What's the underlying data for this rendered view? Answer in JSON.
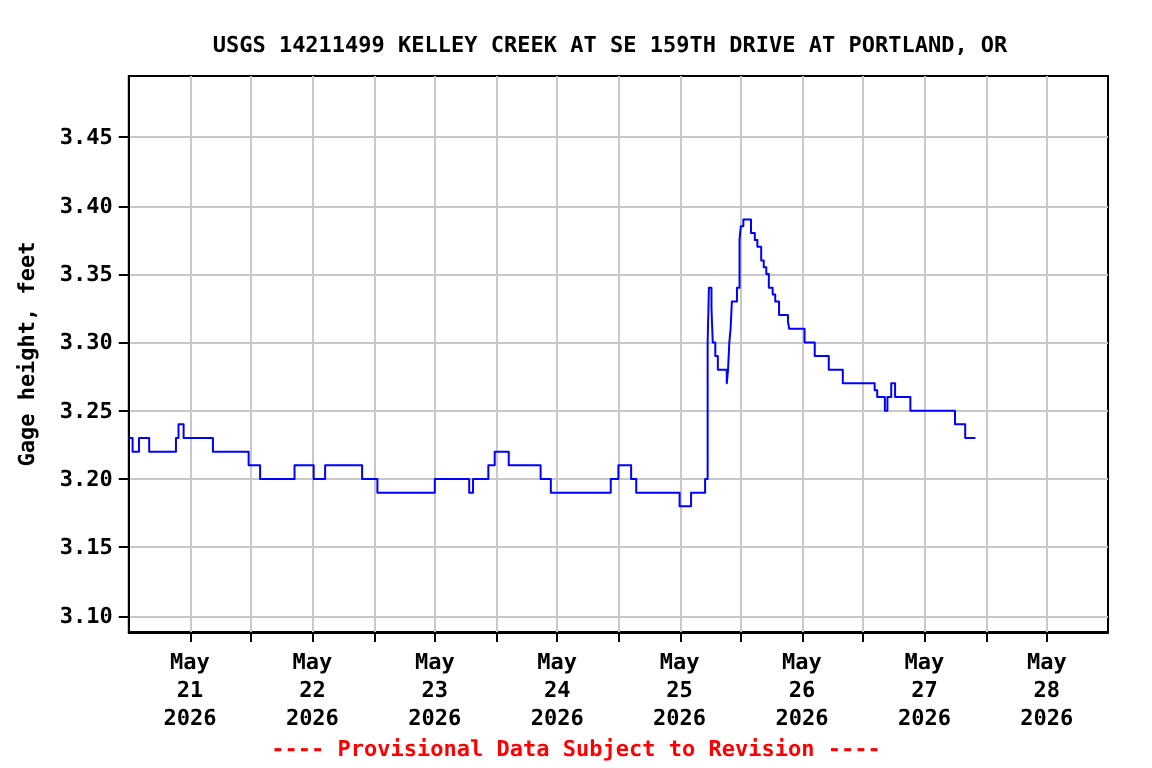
{
  "chart_data": {
    "type": "step",
    "title": "USGS 14211499 KELLEY CREEK AT SE 159TH DRIVE AT PORTLAND, OR",
    "ylabel": "Gage height, feet",
    "annotations": [
      "---- Provisional Data Subject to Revision ----"
    ],
    "x": [
      "2026-05-21T00:00",
      "2026-05-21T00:45",
      "2026-05-21T02:00",
      "2026-05-21T04:00",
      "2026-05-21T09:15",
      "2026-05-21T09:45",
      "2026-05-21T10:45",
      "2026-05-21T16:30",
      "2026-05-21T23:30",
      "2026-05-22T01:45",
      "2026-05-22T08:30",
      "2026-05-22T12:15",
      "2026-05-22T14:30",
      "2026-05-22T21:45",
      "2026-05-23T00:45",
      "2026-05-23T12:00",
      "2026-05-23T18:45",
      "2026-05-23T19:30",
      "2026-05-23T22:30",
      "2026-05-23T23:45",
      "2026-05-24T02:30",
      "2026-05-24T08:45",
      "2026-05-24T10:45",
      "2026-05-24T22:30",
      "2026-05-25T00:00",
      "2026-05-25T02:30",
      "2026-05-25T03:30",
      "2026-05-25T12:00",
      "2026-05-25T14:15",
      "2026-05-25T17:00",
      "2026-05-25T17:30",
      "2026-05-25T17:45",
      "2026-05-25T18:15",
      "2026-05-25T18:30",
      "2026-05-25T19:00",
      "2026-05-25T19:30",
      "2026-05-25T21:15",
      "2026-05-25T21:30",
      "2026-05-25T21:45",
      "2026-05-25T22:00",
      "2026-05-25T22:15",
      "2026-05-25T23:15",
      "2026-05-25T23:45",
      "2026-05-26T00:00",
      "2026-05-26T00:30",
      "2026-05-26T02:00",
      "2026-05-26T02:45",
      "2026-05-26T03:15",
      "2026-05-26T04:00",
      "2026-05-26T04:30",
      "2026-05-26T05:00",
      "2026-05-26T05:30",
      "2026-05-26T06:15",
      "2026-05-26T06:45",
      "2026-05-26T07:30",
      "2026-05-26T09:15",
      "2026-05-26T09:30",
      "2026-05-26T12:30",
      "2026-05-26T14:30",
      "2026-05-26T17:15",
      "2026-05-26T20:00",
      "2026-05-27T02:15",
      "2026-05-27T02:45",
      "2026-05-27T04:15",
      "2026-05-27T04:45",
      "2026-05-27T05:30",
      "2026-05-27T06:15",
      "2026-05-27T09:15",
      "2026-05-27T18:00",
      "2026-05-27T20:00",
      "2026-05-27T22:00"
    ],
    "series": [
      {
        "color": "#0000ff",
        "values": [
          3.23,
          3.22,
          3.23,
          3.22,
          3.23,
          3.24,
          3.23,
          3.22,
          3.21,
          3.2,
          3.21,
          3.2,
          3.21,
          3.2,
          3.19,
          3.2,
          3.19,
          3.2,
          3.21,
          3.22,
          3.21,
          3.2,
          3.19,
          3.2,
          3.21,
          3.2,
          3.19,
          3.18,
          3.19,
          3.2,
          3.3,
          3.34,
          3.325,
          3.3,
          3.29,
          3.28,
          3.27,
          3.28,
          3.3,
          3.31,
          3.33,
          3.34,
          3.375,
          3.385,
          3.39,
          3.38,
          3.375,
          3.37,
          3.36,
          3.355,
          3.35,
          3.34,
          3.335,
          3.33,
          3.32,
          3.315,
          3.31,
          3.3,
          3.29,
          3.28,
          3.27,
          3.265,
          3.26,
          3.25,
          3.26,
          3.27,
          3.26,
          3.25,
          3.24,
          3.23,
          3.23
        ]
      }
    ],
    "xlim": [
      "2026-05-21T00:00",
      "2026-05-29T00:00"
    ],
    "xticks": [
      {
        "value": "2026-05-21T12:00",
        "label": "May\n21\n2026"
      },
      {
        "value": "2026-05-22T00:00",
        "label": null
      },
      {
        "value": "2026-05-22T12:00",
        "label": "May\n22\n2026"
      },
      {
        "value": "2026-05-23T00:00",
        "label": null
      },
      {
        "value": "2026-05-23T12:00",
        "label": "May\n23\n2026"
      },
      {
        "value": "2026-05-24T00:00",
        "label": null
      },
      {
        "value": "2026-05-24T12:00",
        "label": "May\n24\n2026"
      },
      {
        "value": "2026-05-25T00:00",
        "label": null
      },
      {
        "value": "2026-05-25T12:00",
        "label": "May\n25\n2026"
      },
      {
        "value": "2026-05-26T00:00",
        "label": null
      },
      {
        "value": "2026-05-26T12:00",
        "label": "May\n26\n2026"
      },
      {
        "value": "2026-05-27T00:00",
        "label": null
      },
      {
        "value": "2026-05-27T12:00",
        "label": "May\n27\n2026"
      },
      {
        "value": "2026-05-28T00:00",
        "label": null
      },
      {
        "value": "2026-05-28T12:00",
        "label": "May\n28\n2026"
      }
    ],
    "ylim": [
      3.088,
      3.495
    ],
    "yticks": [
      {
        "value": 3.1,
        "label": "3.10"
      },
      3.15,
      {
        "value": 3.2,
        "label": "3.20"
      },
      3.25,
      {
        "value": 3.3,
        "label": "3.30"
      },
      3.35,
      {
        "value": 3.4,
        "label": "3.40"
      },
      3.45
    ],
    "grid": true,
    "marker": "none",
    "line_style": "solid"
  }
}
